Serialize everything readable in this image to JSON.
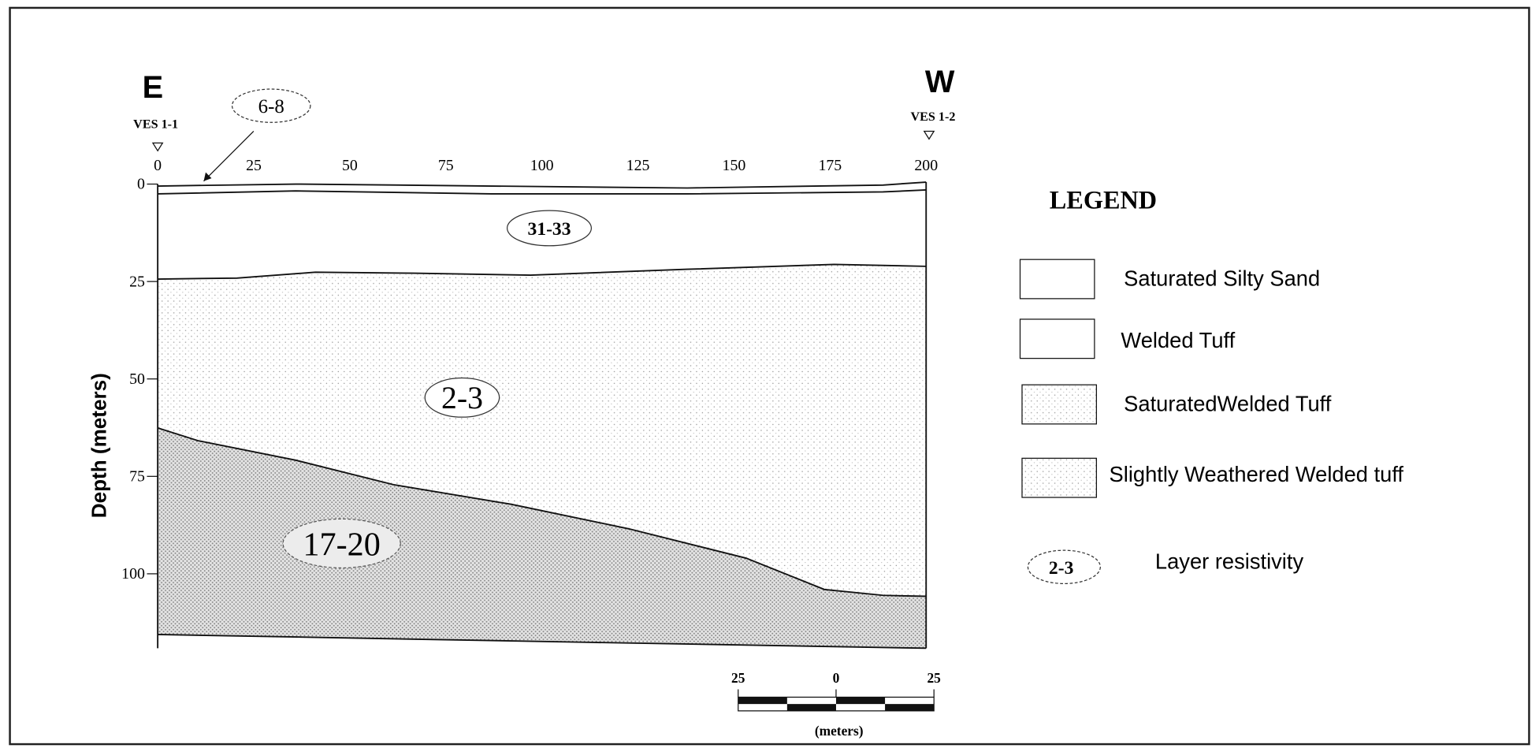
{
  "section": {
    "east_label": "E",
    "west_label": "W",
    "east_station": "VES 1-1",
    "west_station": "VES 1-2",
    "distance_ticks": [
      0,
      25,
      50,
      75,
      100,
      125,
      150,
      175,
      200
    ],
    "depth_ticks": [
      0,
      25,
      50,
      75,
      100
    ],
    "depth_axis_label": "Depth (meters)",
    "resistivity_labels": [
      "6-8",
      "31-33",
      "2-3",
      "17-20"
    ]
  },
  "scale_bar": {
    "ticks": [
      25,
      0,
      25
    ],
    "unit": "(meters)"
  },
  "legend": {
    "title": "LEGEND",
    "items": [
      "Saturated Silty Sand",
      "Welded Tuff",
      "SaturatedWelded Tuff",
      "Slightly Weathered Welded tuff"
    ],
    "resistivity_sample": "2-3",
    "resistivity_caption": "Layer resistivity"
  }
}
